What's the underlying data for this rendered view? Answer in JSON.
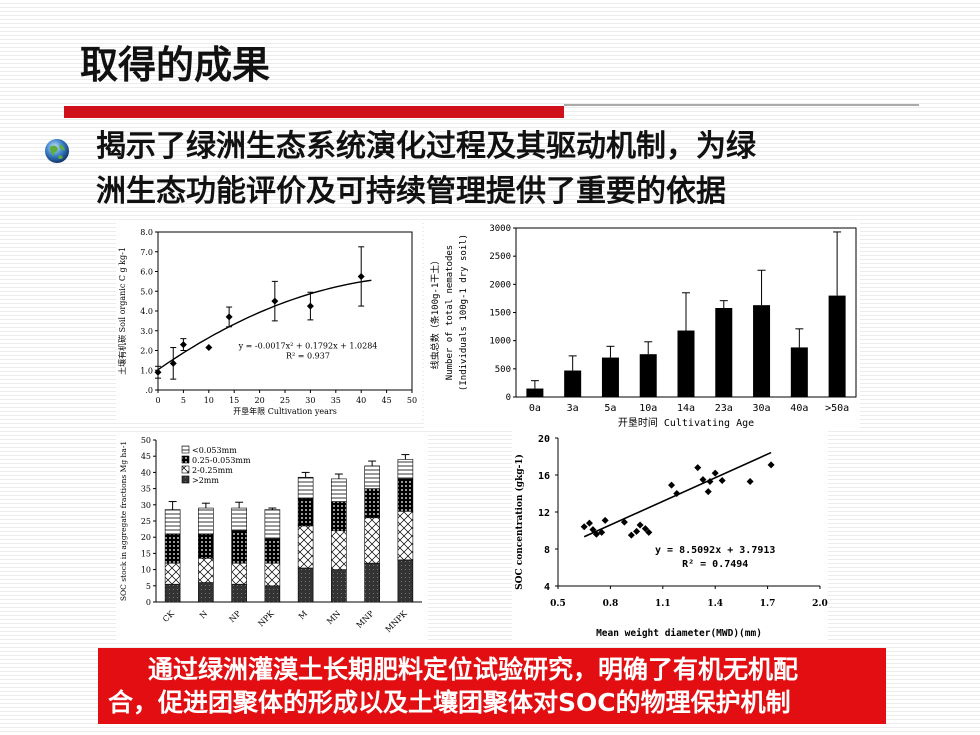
{
  "slide": {
    "title": "取得的成果",
    "bullet_line1": "揭示了绿洲生态系统演化过程及其驱动机制，为绿",
    "bullet_line2": "洲生态功能评价及可持续管理提供了重要的依据",
    "banner_line1": "通过绿洲灌漠土长期肥料定位试验研究，明确了有机无机配",
    "banner_line2": "合，促进团聚体的形成以及土壤团聚体对SOC的物理保护机制"
  },
  "colors": {
    "title_bar": "#d0101a",
    "banner_bg": "#e20e12",
    "bar": "#000000"
  },
  "chart_data": [
    {
      "type": "scatter",
      "ylabel": "土壤有机碳 Soil organic C g kg-1",
      "xlabel": "开垦年限 Cultivation years",
      "ylim": [
        0,
        8
      ],
      "xlim": [
        0,
        50
      ],
      "y_ticks": [
        "8.0",
        "7.0",
        "6.0",
        "5.0",
        "4.0",
        "3.0",
        "2.0",
        "1.0",
        ".0"
      ],
      "x_ticks": [
        "0",
        "5",
        "10",
        "15",
        "20",
        "25",
        "30",
        "35",
        "40",
        "45",
        "50"
      ],
      "points": [
        {
          "x": 0,
          "y": 0.9,
          "err": 0.3
        },
        {
          "x": 3,
          "y": 1.35,
          "err": 0.8
        },
        {
          "x": 5,
          "y": 2.3,
          "err": 0.3
        },
        {
          "x": 10,
          "y": 2.15,
          "err": 0
        },
        {
          "x": 14,
          "y": 3.7,
          "err": 0.5
        },
        {
          "x": 23,
          "y": 4.5,
          "err": 1.0
        },
        {
          "x": 30,
          "y": 4.25,
          "err": 0.7
        },
        {
          "x": 40,
          "y": 5.75,
          "err": 1.5
        }
      ],
      "fit": {
        "a": -0.0017,
        "b": 0.1792,
        "c": 1.0284
      },
      "equation": "y = -0.0017x² + 0.1792x + 1.0284",
      "r2": "R² = 0.937"
    },
    {
      "type": "bar",
      "ylabel_1": "线虫总数（条100g-1干土）",
      "ylabel_2": "Number of total nematodes",
      "ylabel_3": "(Individuals 100g-1 dry soil)",
      "xlabel": "开垦时间 Cultivating Age",
      "ylim": [
        0,
        3000
      ],
      "y_ticks": [
        "3000",
        "2500",
        "2000",
        "1500",
        "1000",
        "500",
        "0"
      ],
      "categories": [
        "0a",
        "3a",
        "5a",
        "10a",
        "14a",
        "23a",
        "30a",
        "40a",
        ">50a"
      ],
      "values": [
        150,
        470,
        700,
        760,
        1180,
        1580,
        1630,
        880,
        1800
      ],
      "errors": [
        140,
        260,
        200,
        220,
        670,
        130,
        620,
        330,
        1130
      ]
    },
    {
      "type": "bar",
      "ylabel": "SOC stock in aggregate fractions Mg ha-1",
      "ylim": [
        0,
        50
      ],
      "y_ticks": [
        "50",
        "45",
        "40",
        "35",
        "30",
        "25",
        "20",
        "15",
        "10",
        "5",
        "0"
      ],
      "legend": [
        "<0.053mm",
        "0.25-0.053mm",
        "2-0.25mm",
        ">2mm"
      ],
      "categories": [
        "CK",
        "N",
        "NP",
        "NPK",
        "M",
        "MN",
        "MNP",
        "MNPK"
      ],
      "series": [
        {
          "name": ">2mm",
          "values": [
            5.5,
            6,
            5.5,
            5,
            10.5,
            10,
            12,
            13
          ]
        },
        {
          "name": "2-0.25mm",
          "values": [
            6.5,
            7.5,
            6.5,
            7,
            13,
            12,
            14,
            15
          ]
        },
        {
          "name": "0.25-0.053mm",
          "values": [
            9,
            7.5,
            10,
            7.5,
            8.5,
            9,
            9,
            10
          ]
        },
        {
          "name": "<0.053mm",
          "values": [
            7.5,
            8,
            7,
            9,
            6.5,
            7,
            7,
            6
          ]
        }
      ],
      "errors": [
        2.5,
        1.5,
        1.8,
        0.5,
        1.5,
        1.5,
        1.5,
        1.5
      ]
    },
    {
      "type": "scatter",
      "ylabel": "SOC concentration (gkg-1)",
      "xlabel": "Mean weight diameter(MWD)(mm)",
      "xlim": [
        0.5,
        2.0
      ],
      "ylim": [
        4,
        20
      ],
      "x_ticks": [
        "0.5",
        "0.8",
        "1.1",
        "1.4",
        "1.7",
        "2.0"
      ],
      "y_ticks": [
        "20",
        "16",
        "12",
        "8",
        "4"
      ],
      "points": [
        [
          0.65,
          10.4
        ],
        [
          0.68,
          10.8
        ],
        [
          0.7,
          10.1
        ],
        [
          0.72,
          9.6
        ],
        [
          0.75,
          9.8
        ],
        [
          0.77,
          11.1
        ],
        [
          0.88,
          10.9
        ],
        [
          0.92,
          9.5
        ],
        [
          0.95,
          9.9
        ],
        [
          0.97,
          10.6
        ],
        [
          1.0,
          10.2
        ],
        [
          1.02,
          9.8
        ],
        [
          1.15,
          14.9
        ],
        [
          1.18,
          14
        ],
        [
          1.3,
          16.8
        ],
        [
          1.33,
          15.5
        ],
        [
          1.36,
          14.2
        ],
        [
          1.37,
          15.3
        ],
        [
          1.4,
          16.2
        ],
        [
          1.44,
          15.4
        ],
        [
          1.6,
          15.3
        ],
        [
          1.72,
          17.1
        ]
      ],
      "fit": {
        "slope": 8.5092,
        "intercept": 3.7913,
        "x_from": 0.65,
        "x_to": 1.72
      },
      "equation": "y = 8.5092x + 3.7913",
      "r2": "R² = 0.7494"
    }
  ]
}
